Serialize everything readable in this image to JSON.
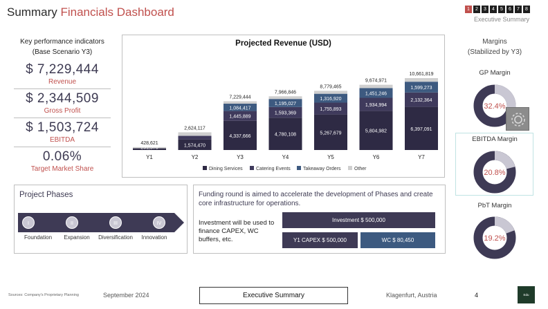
{
  "header": {
    "title_main": "Summary ",
    "title_accent": "Financials Dashboard",
    "nav_pages": [
      "1",
      "2",
      "3",
      "4",
      "5",
      "6",
      "7",
      "8"
    ],
    "nav_active": "1",
    "nav_subtitle": "Executive Summary"
  },
  "kpi": {
    "heading_line1": "Key performance indicators",
    "heading_line2": "(Base Scenario Y3)",
    "items": [
      {
        "value": "$ 7,229,444",
        "label": "Revenue"
      },
      {
        "value": "$ 2,344,509",
        "label": "Gross Profit"
      },
      {
        "value": "$ 1,503,724",
        "label": "EBITDA"
      },
      {
        "value": "0.06%",
        "label": "Target Market Share"
      }
    ]
  },
  "chart_data": {
    "type": "bar",
    "stacked": true,
    "title": "Projected Revenue (USD)",
    "categories": [
      "Y1",
      "Y2",
      "Y3",
      "Y4",
      "Y5",
      "Y6",
      "Y7"
    ],
    "totals": [
      428621,
      2624117,
      7229444,
      7966846,
      8779465,
      9674971,
      10661819
    ],
    "total_labels": [
      "428,621",
      "2,624,117",
      "7,229,444",
      "7,966,846",
      "8,779,465",
      "9,674,971",
      "10,661,819"
    ],
    "series": [
      {
        "name": "Dining Services",
        "color": "#2e2a44",
        "values": [
          251576,
          1574470,
          4337666,
          4780108,
          5267679,
          5804982,
          6397091
        ],
        "labels": [
          "251,576",
          "1,574,470",
          "4,337,666",
          "4,780,108",
          "5,267,679",
          "5,804,982",
          "6,397,091"
        ]
      },
      {
        "name": "Catering Events",
        "color": "#3f3a5c",
        "values": [
          0,
          524823,
          1445889,
          1593369,
          1755893,
          1934994,
          2132364
        ],
        "labels": [
          "",
          "524,823",
          "1,445,889",
          "1,593,369",
          "1,755,893",
          "1,934,994",
          "2,132,364"
        ]
      },
      {
        "name": "Takeaway Orders",
        "color": "#3d5a80",
        "values": [
          0,
          0,
          1084417,
          1195027,
          1316920,
          1451246,
          1599273
        ],
        "labels": [
          "",
          "",
          "1,084,417",
          "1,195,027",
          "1,316,920",
          "1,451,246",
          "1,599,273"
        ]
      },
      {
        "name": "Other",
        "color": "#cfcfcf",
        "values": [
          177045,
          524824,
          361472,
          398342,
          438973,
          483749,
          533091
        ],
        "labels": [
          "",
          "",
          "",
          "",
          "",
          "",
          ""
        ]
      }
    ],
    "legend_position": "bottom",
    "grid": false
  },
  "margins": {
    "heading_line1": "Margins",
    "heading_line2": "(Stabilized by Y3)",
    "items": [
      {
        "label": "GP Margin",
        "value_text": "32.4%",
        "value": 32.4
      },
      {
        "label": "EBITDA Margin",
        "value_text": "20.8%",
        "value": 20.8
      },
      {
        "label": "PbT Margin",
        "value_text": "19.2%",
        "value": 19.2
      }
    ],
    "ring_dark": "#3e3a55",
    "ring_light": "#c9c7d3",
    "label_color": "#c0504d"
  },
  "phases": {
    "title": "Project Phases",
    "items": [
      {
        "numeral": "I",
        "label": "Foundation"
      },
      {
        "numeral": "II",
        "label": "Expansion"
      },
      {
        "numeral": "III",
        "label": "Diversification"
      },
      {
        "numeral": "IV",
        "label": "Innovation"
      }
    ]
  },
  "funding": {
    "text": "Funding round is aimed to accelerate the development of Phases and create core infrastructure for operations.",
    "invest_text": "Investment will be used to finance CAPEX, WC buffers, etc.",
    "investment": "Investment $ 500,000",
    "capex": "Y1 CAPEX $ 500,000",
    "wc": "WC $ 80,450"
  },
  "footer": {
    "source": "Sources: Company's Proprietary Planning",
    "date": "September 2024",
    "section": "Executive Summary",
    "location": "Klagenfurt, Austria",
    "page": "4",
    "logo": "Edu"
  }
}
